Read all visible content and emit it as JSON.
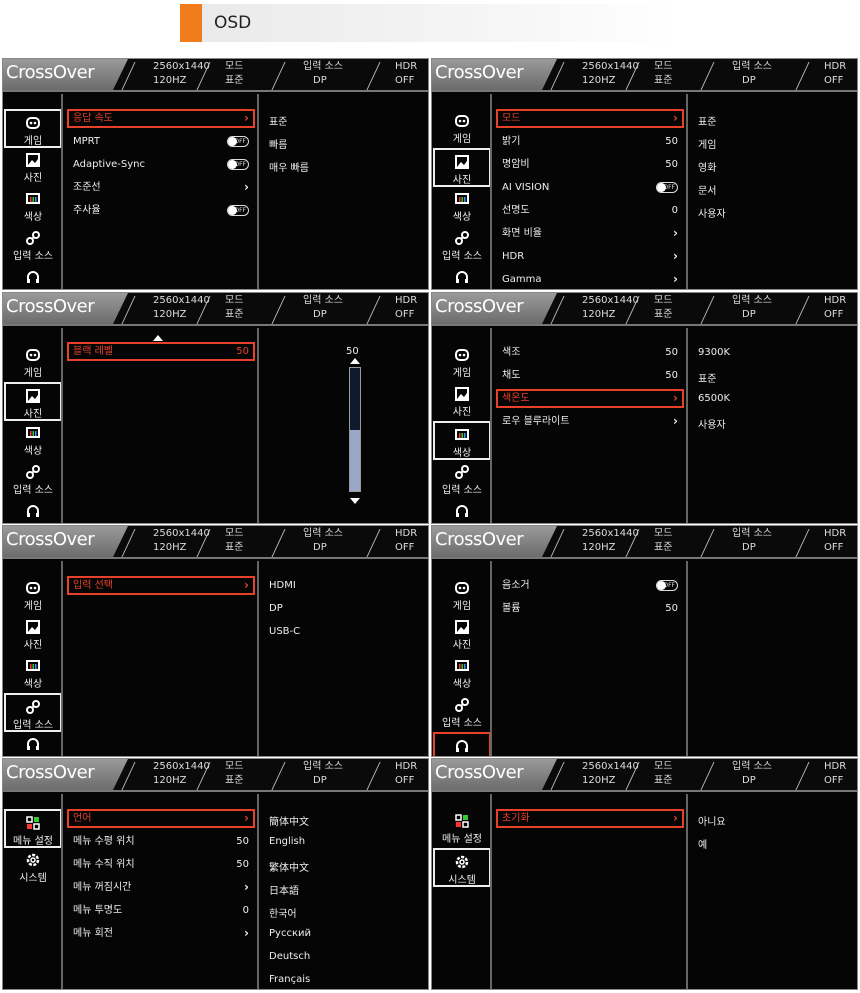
{
  "page_title": "OSD",
  "colors": {
    "accent": "#f07c1c",
    "highlight": "#e8412a"
  },
  "header": {
    "logo": "CrossOver",
    "resolution": "2560x1440",
    "refresh": "120HZ",
    "mode_label": "모드",
    "mode_value": "표준",
    "input_label": "입력 소스",
    "input_value": "DP",
    "hdr_label": "HDR",
    "hdr_value": "OFF"
  },
  "toggle_off_label": "OFF",
  "panels": [
    {
      "sidebar": [
        {
          "label": "게임",
          "icon": "gamepad-icon",
          "state": "sel"
        },
        {
          "label": "사진",
          "icon": "picture-icon"
        },
        {
          "label": "색상",
          "icon": "color-icon"
        },
        {
          "label": "입력 소스",
          "icon": "input-icon"
        },
        {
          "label": "오디오",
          "icon": "headphones-icon"
        }
      ],
      "items": [
        {
          "label": "응답 속도",
          "type": "chevron",
          "hl": true
        },
        {
          "label": "MPRT",
          "type": "toggle"
        },
        {
          "label": "Adaptive-Sync",
          "type": "toggle"
        },
        {
          "label": "조준선",
          "type": "chevron"
        },
        {
          "label": "주사율",
          "type": "toggle"
        }
      ],
      "options": [
        "표준",
        "빠름",
        "매우 빠름"
      ]
    },
    {
      "sidebar": [
        {
          "label": "게임",
          "icon": "gamepad-icon"
        },
        {
          "label": "사진",
          "icon": "picture-icon",
          "state": "sel"
        },
        {
          "label": "색상",
          "icon": "color-icon"
        },
        {
          "label": "입력 소스",
          "icon": "input-icon"
        },
        {
          "label": "오디오",
          "icon": "headphones-icon"
        }
      ],
      "items": [
        {
          "label": "모드",
          "type": "chevron",
          "hl": true
        },
        {
          "label": "밝기",
          "value": "50"
        },
        {
          "label": "명암비",
          "value": "50"
        },
        {
          "label": "AI VISION",
          "type": "toggle"
        },
        {
          "label": "선명도",
          "value": "0"
        },
        {
          "label": "화면 비율",
          "type": "chevron"
        },
        {
          "label": "HDR",
          "type": "chevron"
        },
        {
          "label": "Gamma",
          "type": "chevron"
        }
      ],
      "options": [
        "표준",
        "게임",
        "영화",
        "문서",
        "사용자"
      ]
    },
    {
      "sidebar": [
        {
          "label": "게임",
          "icon": "gamepad-icon"
        },
        {
          "label": "사진",
          "icon": "picture-icon",
          "state": "sel"
        },
        {
          "label": "색상",
          "icon": "color-icon"
        },
        {
          "label": "입력 소스",
          "icon": "input-icon"
        },
        {
          "label": "오디오",
          "icon": "headphones-icon"
        }
      ],
      "scroll_up": true,
      "items": [
        {
          "label": "블랙 레벨",
          "value": "50",
          "hl": true
        }
      ],
      "options": [],
      "slider": {
        "value": 50,
        "max": 100,
        "label": "50"
      }
    },
    {
      "sidebar": [
        {
          "label": "게임",
          "icon": "gamepad-icon"
        },
        {
          "label": "사진",
          "icon": "picture-icon"
        },
        {
          "label": "색상",
          "icon": "color-icon",
          "state": "sel"
        },
        {
          "label": "입력 소스",
          "icon": "input-icon"
        },
        {
          "label": "오디오",
          "icon": "headphones-icon"
        }
      ],
      "items": [
        {
          "label": "색조",
          "value": "50"
        },
        {
          "label": "채도",
          "value": "50"
        },
        {
          "label": "색온도",
          "type": "chevron",
          "hl": true
        },
        {
          "label": "로우 블루라이트",
          "type": "chevron"
        }
      ],
      "options": [
        "9300K",
        "표준",
        "6500K",
        "사용자"
      ]
    },
    {
      "sidebar": [
        {
          "label": "게임",
          "icon": "gamepad-icon"
        },
        {
          "label": "사진",
          "icon": "picture-icon"
        },
        {
          "label": "색상",
          "icon": "color-icon"
        },
        {
          "label": "입력 소스",
          "icon": "input-icon",
          "state": "sel"
        },
        {
          "label": "오디오",
          "icon": "headphones-icon"
        }
      ],
      "items": [
        {
          "label": "입력 선택",
          "type": "chevron",
          "hl": true
        }
      ],
      "options": [
        "HDMI",
        "DP",
        "USB-C"
      ]
    },
    {
      "sidebar": [
        {
          "label": "게임",
          "icon": "gamepad-icon"
        },
        {
          "label": "사진",
          "icon": "picture-icon"
        },
        {
          "label": "색상",
          "icon": "color-icon"
        },
        {
          "label": "입력 소스",
          "icon": "input-icon"
        },
        {
          "label": "오디오",
          "icon": "headphones-icon",
          "state": "act"
        }
      ],
      "items": [
        {
          "label": "음소거",
          "type": "toggle"
        },
        {
          "label": "볼륨",
          "value": "50"
        }
      ],
      "options": []
    },
    {
      "sidebar": [
        {
          "label": "메뉴 설정",
          "icon": "menu-grid-icon",
          "state": "sel"
        },
        {
          "label": "시스템",
          "icon": "system-gear-icon"
        }
      ],
      "items": [
        {
          "label": "언어",
          "type": "chevron",
          "hl": true
        },
        {
          "label": "메뉴 수평 위치",
          "value": "50"
        },
        {
          "label": "메뉴 수직 위치",
          "value": "50"
        },
        {
          "label": "메뉴 꺼짐시간",
          "type": "chevron"
        },
        {
          "label": "메뉴 투명도",
          "value": "0"
        },
        {
          "label": "메뉴 회전",
          "type": "chevron"
        }
      ],
      "options": [
        "簡体中文",
        "English",
        "繁体中文",
        "日本語",
        "한국어",
        "Русский",
        "Deutsch",
        "Français"
      ]
    },
    {
      "sidebar": [
        {
          "label": "메뉴 설정",
          "icon": "menu-grid-icon"
        },
        {
          "label": "시스템",
          "icon": "system-gear-icon",
          "state": "sel"
        }
      ],
      "items": [
        {
          "label": "초기화",
          "type": "chevron",
          "hl": true
        }
      ],
      "options": [
        "아니요",
        "예"
      ]
    }
  ]
}
